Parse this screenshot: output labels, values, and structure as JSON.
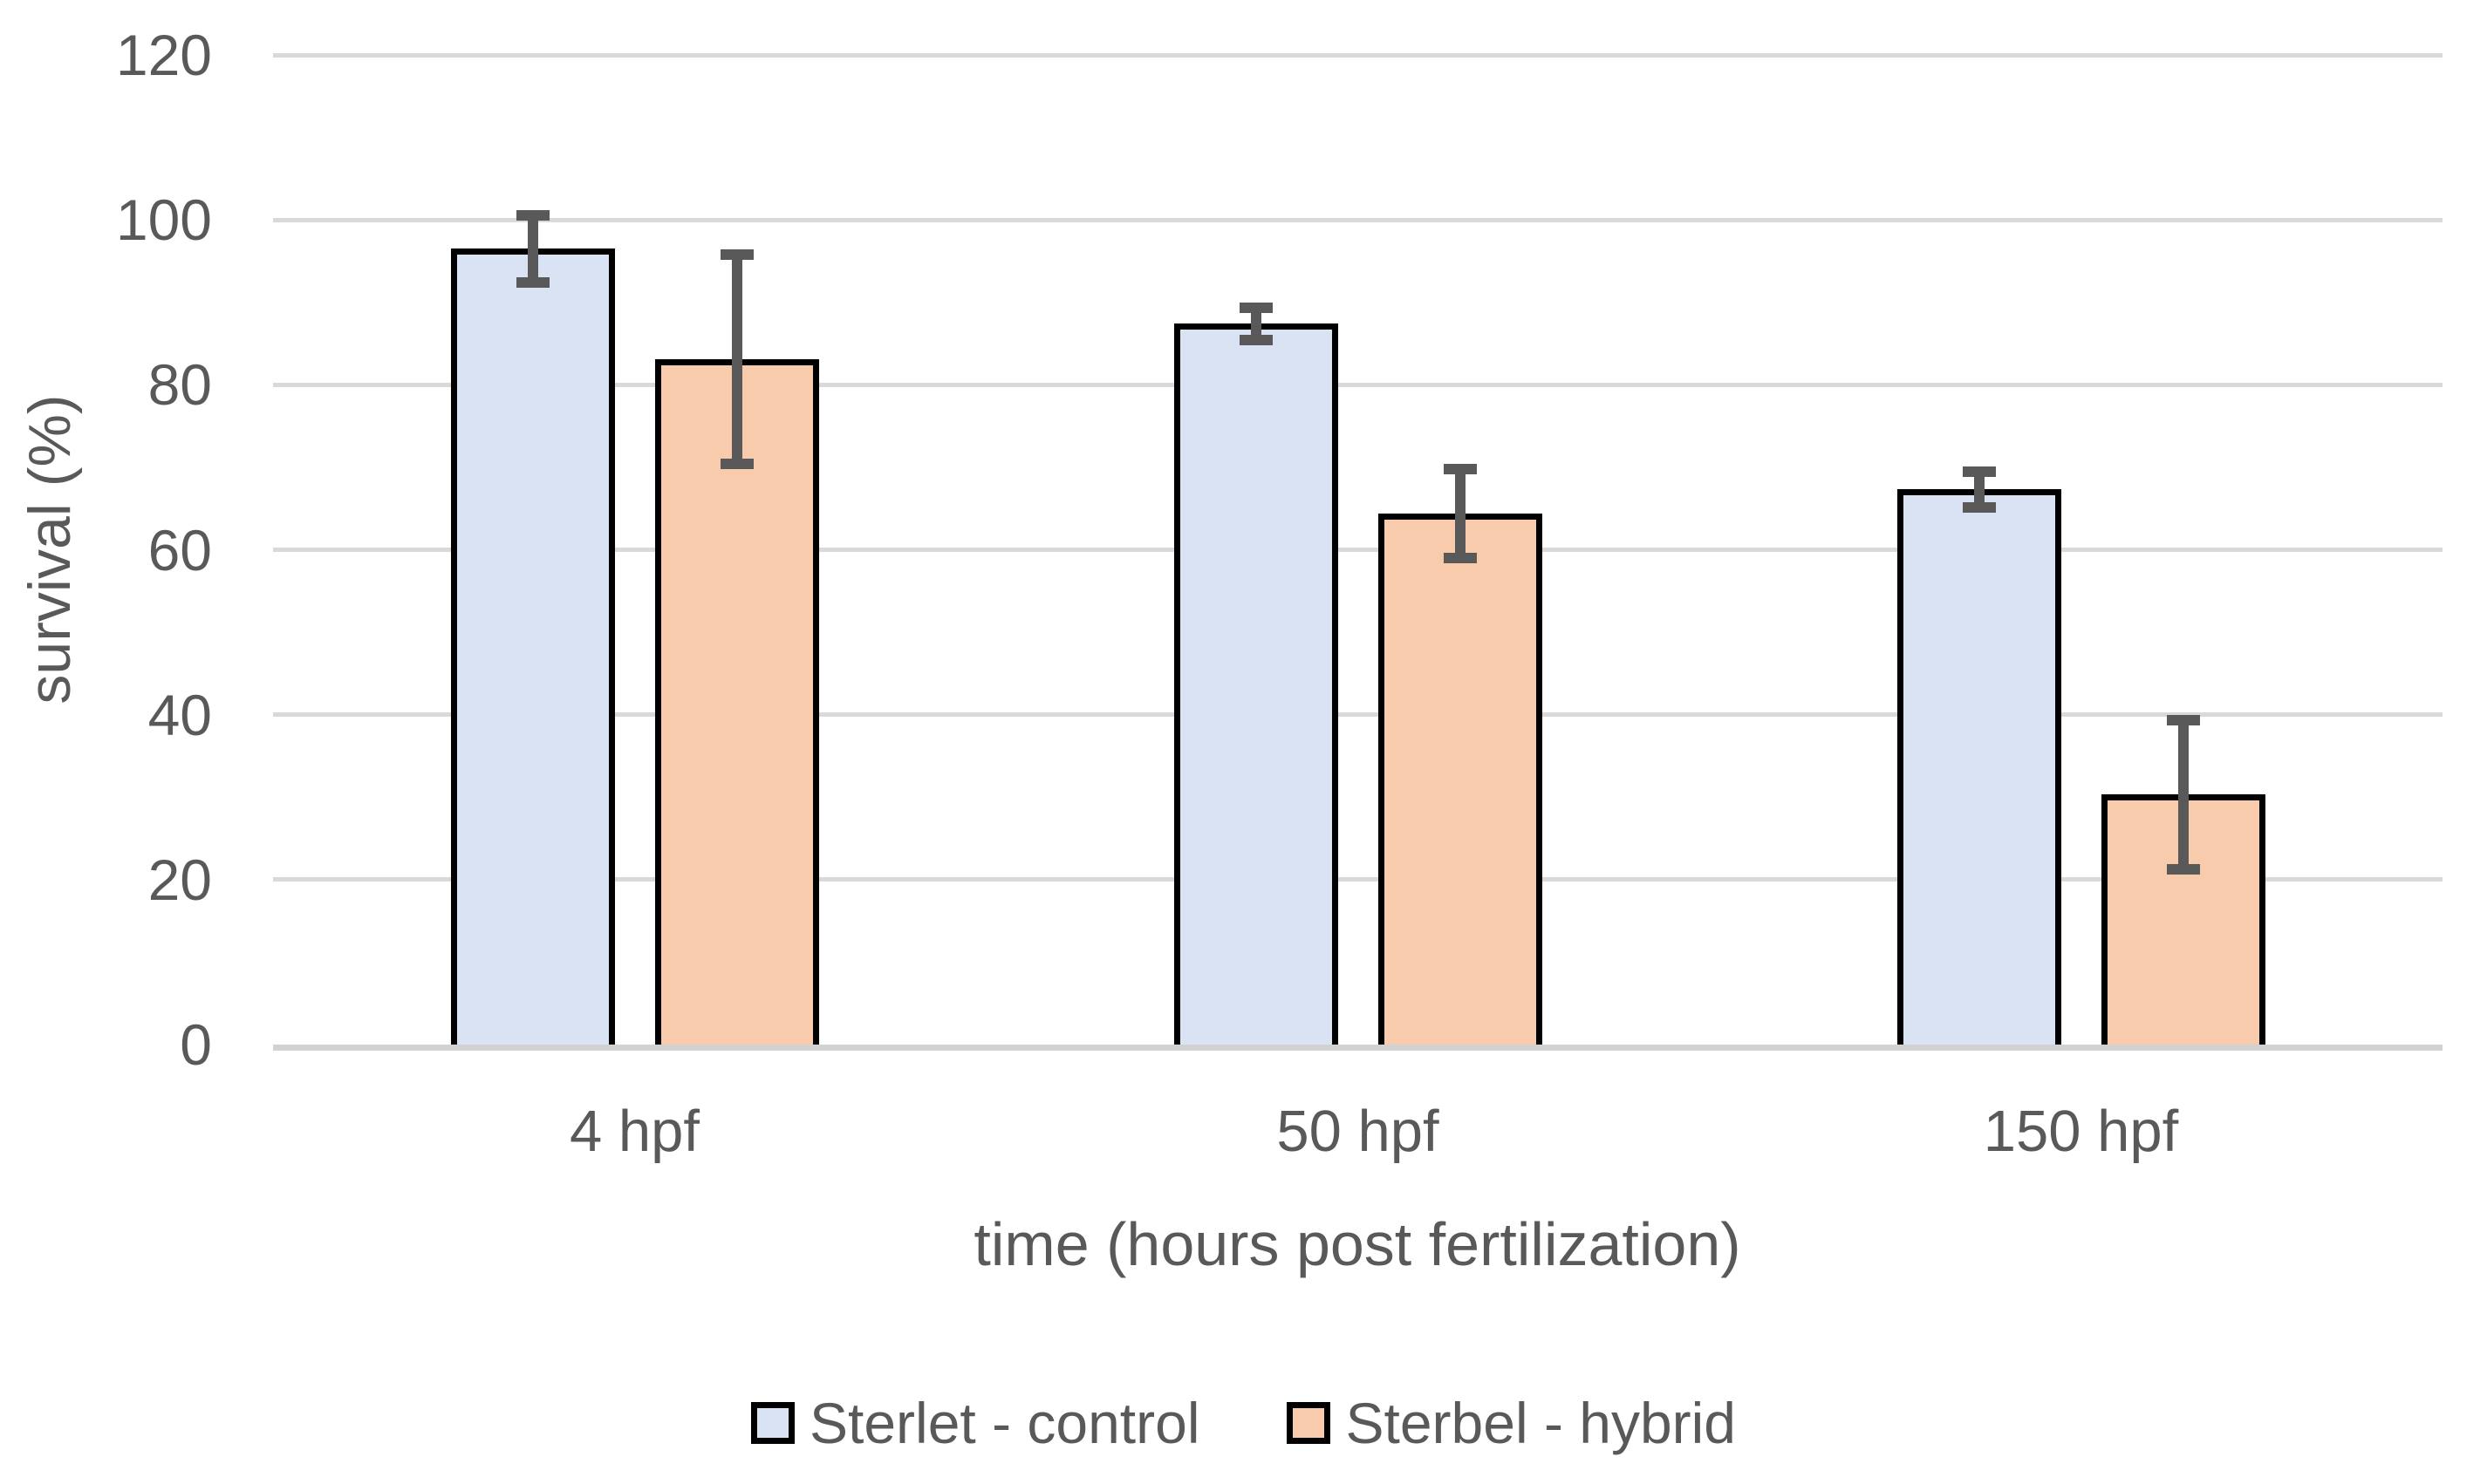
{
  "chart_data": {
    "type": "bar",
    "title": "",
    "xlabel": "time (hours post fertilization)",
    "ylabel": "survival (%)",
    "categories": [
      "4 hpf",
      "50 hpf",
      "150 hpf"
    ],
    "series": [
      {
        "name": "Sterlet - control",
        "color": "#dae3f3",
        "values": [
          96.5,
          87.4,
          67.3
        ],
        "errors": [
          4.7,
          2.6,
          2.8
        ]
      },
      {
        "name": "Sterbel - hybrid",
        "color": "#f8cbad",
        "values": [
          83.1,
          64.4,
          30.3
        ],
        "errors": [
          13.3,
          6.0,
          9.7
        ]
      }
    ],
    "ylim": [
      0,
      120
    ],
    "ytick_step": 20,
    "yticks": [
      "0",
      "20",
      "40",
      "60",
      "80",
      "100",
      "120"
    ],
    "grid": true,
    "legend_position": "bottom",
    "colors": {
      "bar_border": "#000000",
      "error_bar": "#595959",
      "gridline": "#d9d9d9",
      "axis_line": "#d2d2d2",
      "text": "#595959",
      "background": "#ffffff"
    }
  }
}
